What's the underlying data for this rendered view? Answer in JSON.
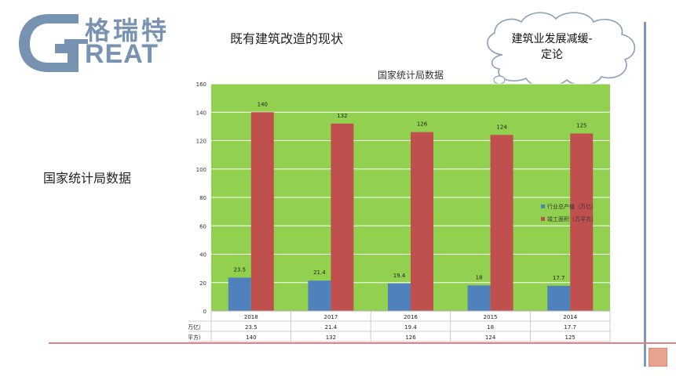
{
  "logo": {
    "cn": "格瑞特",
    "en": "REAT",
    "letter": "G"
  },
  "slide_title": "既有建筑改造的现状",
  "side_label": "国家统计局数据",
  "cloud_callout": {
    "line1": "建筑业发展减缓-",
    "line2": "定论"
  },
  "colors": {
    "plot_bg": "#92d050",
    "series1": "#4f81bd",
    "series2": "#c0504d",
    "accent_line": "#7b98bd",
    "bottom_line": "#e67f86"
  },
  "chart_data": {
    "type": "bar",
    "title": "国家统计局数据",
    "categories": [
      "2018",
      "2017",
      "2016",
      "2015",
      "2014"
    ],
    "series": [
      {
        "name": "行业总产值（万亿）",
        "values": [
          23.5,
          21.4,
          19.4,
          18,
          17.7
        ]
      },
      {
        "name": "竣工面积（万平方）",
        "values": [
          140,
          132,
          126,
          124,
          125
        ]
      }
    ],
    "y_ticks": [
      0,
      20,
      40,
      60,
      80,
      100,
      120,
      140,
      160
    ],
    "ylim": [
      0,
      160
    ],
    "xlabel": "",
    "ylabel": "",
    "legend_position": "right",
    "grid": true,
    "data_table": true
  }
}
